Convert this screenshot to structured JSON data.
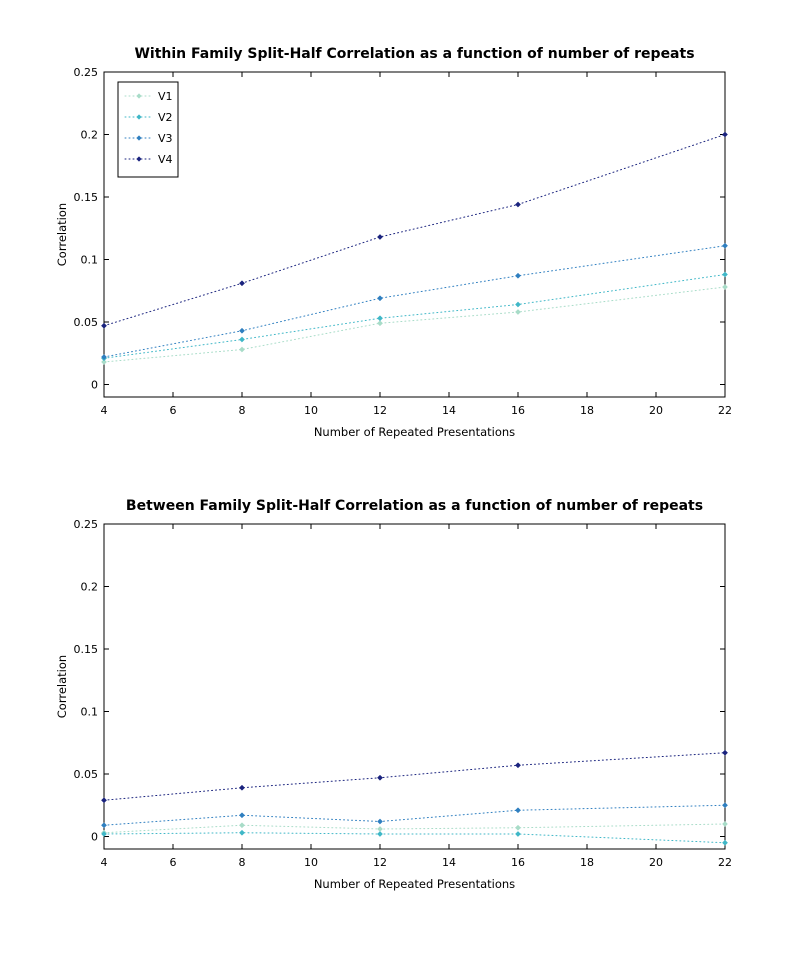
{
  "chart_data": [
    {
      "type": "line",
      "title": "Within Family Split-Half Correlation as a function of number of repeats",
      "xlabel": "Number of Repeated Presentations",
      "ylabel": "Correlation",
      "x": [
        4,
        8,
        12,
        16,
        22
      ],
      "xlim": [
        4,
        22
      ],
      "ylim": [
        -0.01,
        0.25
      ],
      "xticks": [
        4,
        6,
        8,
        10,
        12,
        14,
        16,
        18,
        20,
        22
      ],
      "xtick_labels": [
        "4",
        "6",
        "8",
        "10",
        "12",
        "14",
        "16",
        "18",
        "20",
        "22"
      ],
      "yticks": [
        0,
        0.05,
        0.1,
        0.15,
        0.2,
        0.25
      ],
      "ytick_labels": [
        "0",
        "0.05",
        "0.1",
        "0.15",
        "0.2",
        "0.25"
      ],
      "grid": false,
      "legend": "top-left",
      "series": [
        {
          "name": "V1",
          "color": "#a8dcc8",
          "values": [
            0.018,
            0.028,
            0.049,
            0.058,
            0.078
          ]
        },
        {
          "name": "V2",
          "color": "#3fb7c7",
          "values": [
            0.021,
            0.036,
            0.053,
            0.064,
            0.088
          ]
        },
        {
          "name": "V3",
          "color": "#2f7fc0",
          "values": [
            0.022,
            0.043,
            0.069,
            0.087,
            0.111
          ]
        },
        {
          "name": "V4",
          "color": "#1a237e",
          "values": [
            0.047,
            0.081,
            0.118,
            0.144,
            0.2
          ]
        }
      ]
    },
    {
      "type": "line",
      "title": "Between Family Split-Half Correlation as a function of number of repeats",
      "xlabel": "Number of Repeated Presentations",
      "ylabel": "Correlation",
      "x": [
        4,
        8,
        12,
        16,
        22
      ],
      "xlim": [
        4,
        22
      ],
      "ylim": [
        -0.01,
        0.25
      ],
      "xticks": [
        4,
        6,
        8,
        10,
        12,
        14,
        16,
        18,
        20,
        22
      ],
      "xtick_labels": [
        "4",
        "6",
        "8",
        "10",
        "12",
        "14",
        "16",
        "18",
        "20",
        "22"
      ],
      "yticks": [
        0,
        0.05,
        0.1,
        0.15,
        0.2,
        0.25
      ],
      "ytick_labels": [
        "0",
        "0.05",
        "0.1",
        "0.15",
        "0.2",
        "0.25"
      ],
      "grid": false,
      "legend": "none",
      "series": [
        {
          "name": "V1",
          "color": "#a8dcc8",
          "values": [
            0.003,
            0.009,
            0.006,
            0.007,
            0.01
          ]
        },
        {
          "name": "V2",
          "color": "#3fb7c7",
          "values": [
            0.002,
            0.003,
            0.002,
            0.002,
            -0.005
          ]
        },
        {
          "name": "V3",
          "color": "#2f7fc0",
          "values": [
            0.009,
            0.017,
            0.012,
            0.021,
            0.025
          ]
        },
        {
          "name": "V4",
          "color": "#1a237e",
          "values": [
            0.029,
            0.039,
            0.047,
            0.057,
            0.067
          ]
        }
      ]
    }
  ]
}
